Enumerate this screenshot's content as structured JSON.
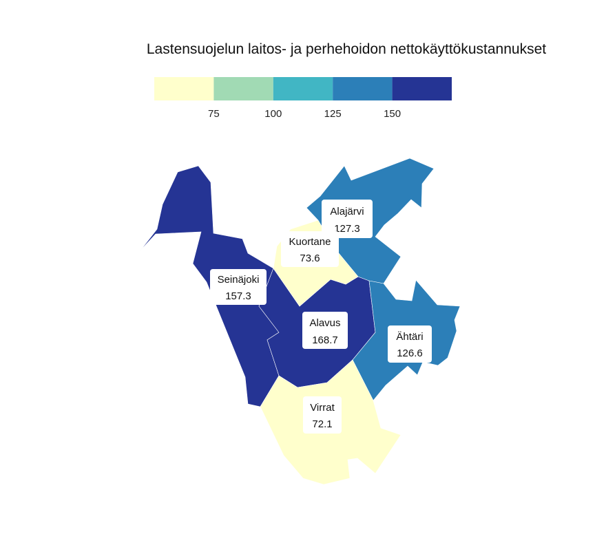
{
  "title": "Lastensuojelun laitos- ja perhehoidon nettokäyttökustannukset",
  "legend": {
    "bins": [
      {
        "color": "#ffffcc"
      },
      {
        "color": "#a1dab4"
      },
      {
        "color": "#41b6c4"
      },
      {
        "color": "#2c7fb8"
      },
      {
        "color": "#253494"
      }
    ],
    "ticks": [
      "75",
      "100",
      "125",
      "150"
    ]
  },
  "chart_data": {
    "type": "choropleth",
    "regions": [
      {
        "name": "Alajärvi",
        "value": 127.3,
        "value_label": "127.3",
        "color": "#2c7fb8"
      },
      {
        "name": "Kuortane",
        "value": 73.6,
        "value_label": "73.6",
        "color": "#ffffcc"
      },
      {
        "name": "Seinäjoki",
        "value": 157.3,
        "value_label": "157.3",
        "color": "#253494"
      },
      {
        "name": "Alavus",
        "value": 168.7,
        "value_label": "168.7",
        "color": "#253494"
      },
      {
        "name": "Ähtäri",
        "value": 126.6,
        "value_label": "126.6",
        "color": "#2c7fb8"
      },
      {
        "name": "Virrat",
        "value": 72.1,
        "value_label": "72.1",
        "color": "#ffffcc"
      }
    ]
  }
}
